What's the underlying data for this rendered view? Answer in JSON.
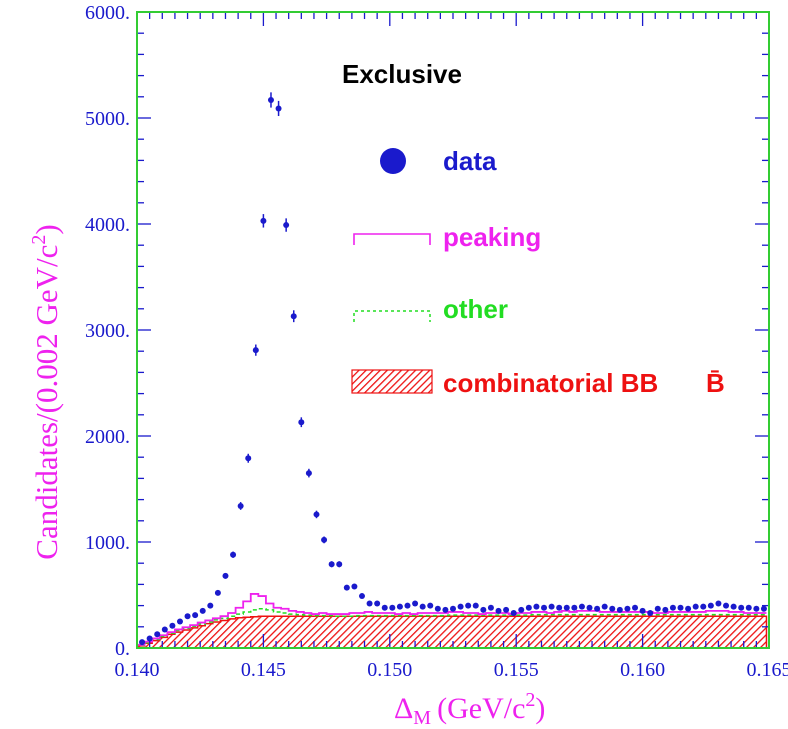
{
  "chart_data": {
    "type": "scatter",
    "title": "Exclusive",
    "xlabel": "Δ",
    "xlabel_sub": "M",
    "xlabel_unit": "(GeV/c",
    "xlabel_sup": "2",
    "xlabel_close": ")",
    "ylabel": "Candidates/(0.002 GeV/c",
    "ylabel_sup": "2",
    "ylabel_close": ")",
    "xlim": [
      0.14,
      0.165
    ],
    "ylim": [
      0,
      6000
    ],
    "xticks": [
      0.14,
      0.145,
      0.15,
      0.155,
      0.16,
      0.165
    ],
    "xtick_labels": [
      "0.140",
      "0.145",
      "0.150",
      "0.155",
      "0.160",
      "0.165"
    ],
    "yticks": [
      0,
      1000,
      2000,
      3000,
      4000,
      5000,
      6000
    ],
    "ytick_labels": [
      "0.",
      "1000.",
      "2000.",
      "3000.",
      "4000.",
      "5000.",
      "6000."
    ],
    "colors": {
      "frame": "#33cc33",
      "axis_text": "#1a1acc",
      "label": "#ee22ee",
      "data": "#1a1acc",
      "peaking": "#ee22ee",
      "other": "#22dd22",
      "combinatorial": "#ee1111",
      "title": "#000000"
    },
    "legend": {
      "data": "data",
      "peaking": "peaking",
      "other": "other",
      "combinatorial": "combinatorial BB",
      "bbar": "B̄"
    },
    "series": [
      {
        "name": "data",
        "points": [
          [
            0.1402,
            55
          ],
          [
            0.1405,
            90
          ],
          [
            0.1408,
            130
          ],
          [
            0.1411,
            175
          ],
          [
            0.1414,
            210
          ],
          [
            0.1417,
            250
          ],
          [
            0.142,
            300
          ],
          [
            0.1423,
            310
          ],
          [
            0.1426,
            350
          ],
          [
            0.1429,
            400
          ],
          [
            0.1432,
            520
          ],
          [
            0.1435,
            680
          ],
          [
            0.1438,
            880
          ],
          [
            0.1441,
            1340
          ],
          [
            0.1444,
            1790
          ],
          [
            0.1447,
            2810
          ],
          [
            0.145,
            4030
          ],
          [
            0.1453,
            5170
          ],
          [
            0.1456,
            5090
          ],
          [
            0.1459,
            3990
          ],
          [
            0.1462,
            3130
          ],
          [
            0.1465,
            2130
          ],
          [
            0.1468,
            1650
          ],
          [
            0.1471,
            1260
          ],
          [
            0.1474,
            1020
          ],
          [
            0.1477,
            790
          ],
          [
            0.148,
            790
          ],
          [
            0.1483,
            570
          ],
          [
            0.1486,
            580
          ],
          [
            0.1489,
            490
          ],
          [
            0.1492,
            420
          ],
          [
            0.1495,
            420
          ],
          [
            0.1498,
            380
          ],
          [
            0.1501,
            380
          ],
          [
            0.1504,
            390
          ],
          [
            0.1507,
            400
          ],
          [
            0.151,
            420
          ],
          [
            0.1513,
            390
          ],
          [
            0.1516,
            400
          ],
          [
            0.1519,
            370
          ],
          [
            0.1522,
            360
          ],
          [
            0.1525,
            370
          ],
          [
            0.1528,
            390
          ],
          [
            0.1531,
            400
          ],
          [
            0.1534,
            400
          ],
          [
            0.1537,
            360
          ],
          [
            0.154,
            380
          ],
          [
            0.1543,
            350
          ],
          [
            0.1546,
            360
          ],
          [
            0.1549,
            330
          ],
          [
            0.1552,
            360
          ],
          [
            0.1555,
            380
          ],
          [
            0.1558,
            390
          ],
          [
            0.1561,
            380
          ],
          [
            0.1564,
            390
          ],
          [
            0.1567,
            380
          ],
          [
            0.157,
            380
          ],
          [
            0.1573,
            380
          ],
          [
            0.1576,
            390
          ],
          [
            0.1579,
            380
          ],
          [
            0.1582,
            370
          ],
          [
            0.1585,
            390
          ],
          [
            0.1588,
            370
          ],
          [
            0.1591,
            360
          ],
          [
            0.1594,
            370
          ],
          [
            0.1597,
            380
          ],
          [
            0.16,
            350
          ],
          [
            0.1603,
            330
          ],
          [
            0.1606,
            370
          ],
          [
            0.1609,
            360
          ],
          [
            0.1612,
            380
          ],
          [
            0.1615,
            380
          ],
          [
            0.1618,
            370
          ],
          [
            0.1621,
            390
          ],
          [
            0.1624,
            390
          ],
          [
            0.1627,
            400
          ],
          [
            0.163,
            420
          ],
          [
            0.1633,
            400
          ],
          [
            0.1636,
            390
          ],
          [
            0.1639,
            380
          ],
          [
            0.1642,
            380
          ],
          [
            0.1645,
            370
          ],
          [
            0.1648,
            370
          ]
        ]
      },
      {
        "name": "peaking",
        "bins_x0": 0.14,
        "bin_width": 0.0003,
        "values": [
          30,
          60,
          90,
          120,
          150,
          175,
          195,
          215,
          240,
          260,
          280,
          300,
          330,
          380,
          440,
          510,
          490,
          420,
          380,
          370,
          350,
          340,
          330,
          320,
          330,
          320,
          320,
          320,
          330,
          330,
          340,
          330,
          330,
          330,
          320,
          330,
          320,
          330,
          330,
          330,
          330,
          340,
          340,
          330,
          330,
          320,
          330,
          330,
          330,
          320,
          330,
          330,
          340,
          340,
          330,
          340,
          350,
          340,
          350,
          350,
          350,
          340,
          340,
          340,
          340,
          340,
          340,
          340,
          330,
          330,
          340,
          340,
          340,
          340,
          340,
          350,
          350,
          350,
          340,
          340,
          330,
          330,
          330
        ]
      },
      {
        "name": "other",
        "bins_x0": 0.14,
        "bin_width": 0.0003,
        "values": [
          25,
          50,
          80,
          110,
          140,
          165,
          185,
          205,
          225,
          245,
          265,
          280,
          300,
          320,
          340,
          360,
          370,
          360,
          340,
          330,
          320,
          315,
          310,
          305,
          305,
          305,
          300,
          300,
          300,
          305,
          305,
          305,
          305,
          305,
          305,
          305,
          305,
          305,
          305,
          305,
          305,
          310,
          310,
          310,
          310,
          310,
          310,
          310,
          310,
          310,
          310,
          310,
          315,
          315,
          315,
          315,
          315,
          315,
          315,
          315,
          315,
          315,
          315,
          315,
          315,
          315,
          315,
          315,
          315,
          315,
          315,
          315,
          315,
          315,
          315,
          315,
          315,
          315,
          315,
          315,
          315,
          315,
          315
        ]
      },
      {
        "name": "combinatorial BB̄",
        "bins_x0": 0.14,
        "bin_width": 0.0003,
        "values": [
          20,
          45,
          70,
          100,
          130,
          150,
          170,
          190,
          210,
          230,
          245,
          260,
          275,
          285,
          290,
          295,
          300,
          300,
          300,
          300,
          300,
          300,
          300,
          300,
          300,
          300,
          300,
          300,
          300,
          300,
          300,
          300,
          300,
          300,
          300,
          300,
          300,
          300,
          300,
          300,
          300,
          300,
          300,
          300,
          300,
          300,
          300,
          300,
          300,
          300,
          300,
          300,
          300,
          300,
          300,
          300,
          300,
          300,
          300,
          300,
          300,
          300,
          300,
          300,
          300,
          300,
          300,
          300,
          300,
          300,
          300,
          300,
          300,
          300,
          300,
          300,
          300,
          300,
          300,
          300,
          300,
          300,
          300
        ]
      }
    ]
  }
}
